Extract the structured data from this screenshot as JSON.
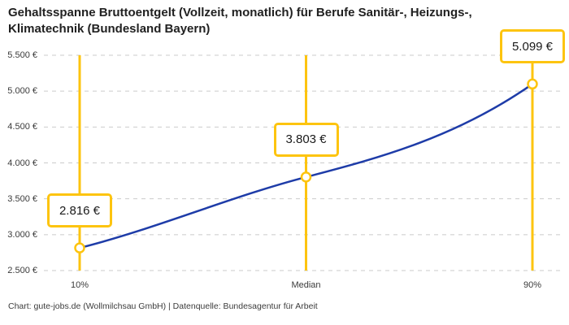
{
  "title": {
    "lines": [
      "Gehaltsspanne Bruttoentgelt (Vollzeit, monatlich) für Berufe Sanitär-, Heizungs-,",
      "Klimatechnik (Bundesland Bayern)"
    ]
  },
  "footer": "Chart: gute-jobs.de (Wollmilchsau GmbH) | Datenquelle: Bundesagentur für Arbeit",
  "chart_data": {
    "type": "line",
    "title": "Gehaltsspanne Bruttoentgelt (Vollzeit, monatlich) für Berufe Sanitär-, Heizungs-, Klimatechnik (Bundesland Bayern)",
    "categories": [
      "10%",
      "Median",
      "90%"
    ],
    "values": [
      2816,
      3803,
      5099
    ],
    "value_labels": [
      "2.816 €",
      "3.803 €",
      "5.099 €"
    ],
    "ylim": [
      2500,
      5500
    ],
    "yticks": [
      2500,
      3000,
      3500,
      4000,
      4500,
      5000,
      5500
    ],
    "ytick_labels": [
      "2.500 €",
      "3.000 €",
      "3.500 €",
      "4.000 €",
      "4.500 €",
      "5.000 €",
      "5.500 €"
    ],
    "xlabel": "",
    "ylabel": "",
    "grid": "horizontal-dashed",
    "legend": "none",
    "colors": {
      "line": "#1e3ca8",
      "accent": "#fdc40f",
      "grid": "#cbcbcb",
      "marker_fill": "#ffffff",
      "text": "#212121"
    }
  }
}
